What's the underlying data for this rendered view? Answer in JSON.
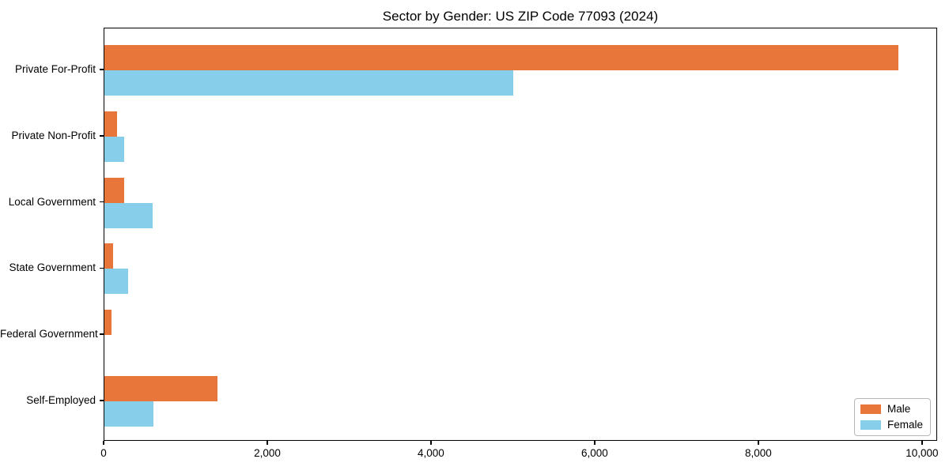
{
  "chart_data": {
    "type": "bar",
    "orientation": "horizontal",
    "title": "Sector by Gender: US ZIP Code 77093 (2024)",
    "categories": [
      "Private For-Profit",
      "Private Non-Profit",
      "Local Government",
      "State Government",
      "Federal Government",
      "Self-Employed"
    ],
    "series": [
      {
        "name": "Male",
        "color": "#e8763b",
        "values": [
          9700,
          150,
          240,
          110,
          90,
          1380
        ]
      },
      {
        "name": "Female",
        "color": "#87ceeb",
        "values": [
          5000,
          240,
          590,
          290,
          0,
          600
        ]
      }
    ],
    "xlabel": "",
    "ylabel": "",
    "xlim": [
      0,
      10185
    ],
    "xticks": [
      {
        "value": 0,
        "label": "0"
      },
      {
        "value": 2000,
        "label": "2,000"
      },
      {
        "value": 4000,
        "label": "4,000"
      },
      {
        "value": 6000,
        "label": "6,000"
      },
      {
        "value": 8000,
        "label": "8,000"
      },
      {
        "value": 10000,
        "label": "10,000"
      }
    ],
    "grid": false,
    "legend": {
      "position": "lower-right",
      "entries": [
        "Male",
        "Female"
      ]
    }
  }
}
